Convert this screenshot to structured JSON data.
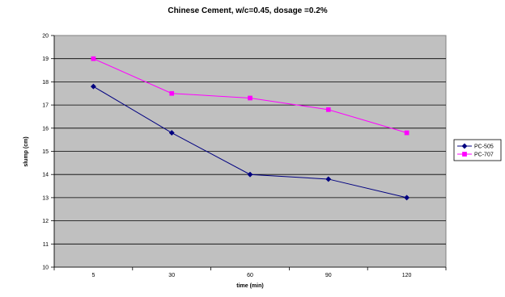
{
  "chart_data": {
    "type": "line",
    "title": "Chinese Cement, w/c=0.45, dosage =0.2%",
    "xlabel": "time (min)",
    "ylabel": "slump (cm)",
    "categories": [
      "5",
      "30",
      "60",
      "90",
      "120"
    ],
    "ylim": [
      10,
      20
    ],
    "yticks": [
      "10",
      "11",
      "12",
      "13",
      "14",
      "15",
      "16",
      "17",
      "18",
      "19",
      "20"
    ],
    "grid": true,
    "legend_position": "right",
    "plot_background": "#c0c0c0",
    "series": [
      {
        "name": "PC-505",
        "values": [
          17.8,
          15.8,
          14.0,
          13.8,
          13.0
        ],
        "color": "#000080",
        "marker": "diamond"
      },
      {
        "name": "PC-707",
        "values": [
          19.0,
          17.5,
          17.3,
          16.8,
          15.8
        ],
        "color": "#ff00ff",
        "marker": "square"
      }
    ]
  }
}
